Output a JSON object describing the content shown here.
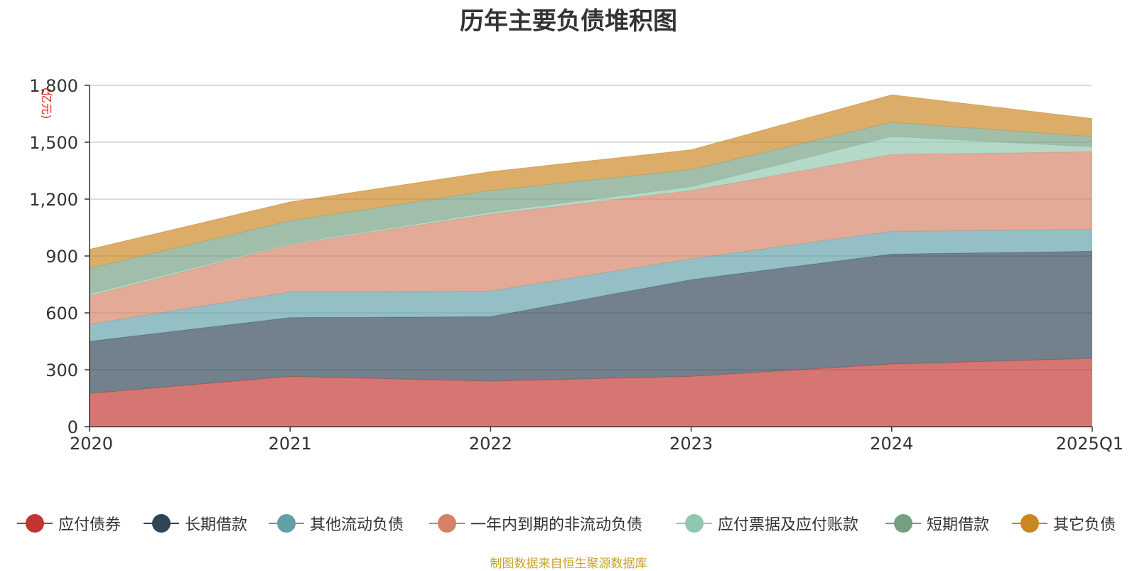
{
  "colors": {
    "axis": "#333333",
    "grid": "#bbbbbb",
    "unit": "#e02020",
    "source": "#c9a227"
  },
  "chart_data": {
    "type": "area",
    "stacked": true,
    "title": "历年主要负债堆积图",
    "unit_label": "(亿元)",
    "x": [
      "2020",
      "2021",
      "2022",
      "2023",
      "2024",
      "2025Q1"
    ],
    "ylim": [
      0,
      1800
    ],
    "yticks": [
      0,
      300,
      600,
      900,
      1200,
      1500,
      1800
    ],
    "ytick_labels": [
      "0",
      "300",
      "600",
      "900",
      "1,200",
      "1,500",
      "1,800"
    ],
    "grid": true,
    "legend_position": "bottom",
    "series": [
      {
        "name": "应付债券",
        "color": "#c23531",
        "values": [
          175,
          265,
          240,
          265,
          330,
          360
        ]
      },
      {
        "name": "长期借款",
        "color": "#2f4554",
        "values": [
          275,
          310,
          340,
          510,
          580,
          565
        ]
      },
      {
        "name": "其他流动负债",
        "color": "#61a0a8",
        "values": [
          90,
          135,
          135,
          110,
          120,
          115
        ]
      },
      {
        "name": "一年内到期的非流动负债",
        "color": "#d48265",
        "values": [
          150,
          250,
          405,
          360,
          405,
          410
        ]
      },
      {
        "name": "应付票据及应付账款",
        "color": "#91c7ae",
        "values": [
          10,
          5,
          10,
          20,
          95,
          25
        ]
      },
      {
        "name": "短期借款",
        "color": "#749f83",
        "values": [
          135,
          120,
          115,
          90,
          75,
          55
        ]
      },
      {
        "name": "其它负债",
        "color": "#ca8622",
        "values": [
          100,
          100,
          100,
          105,
          145,
          95
        ]
      }
    ]
  },
  "source_text": "制图数据来自恒生聚源数据库"
}
